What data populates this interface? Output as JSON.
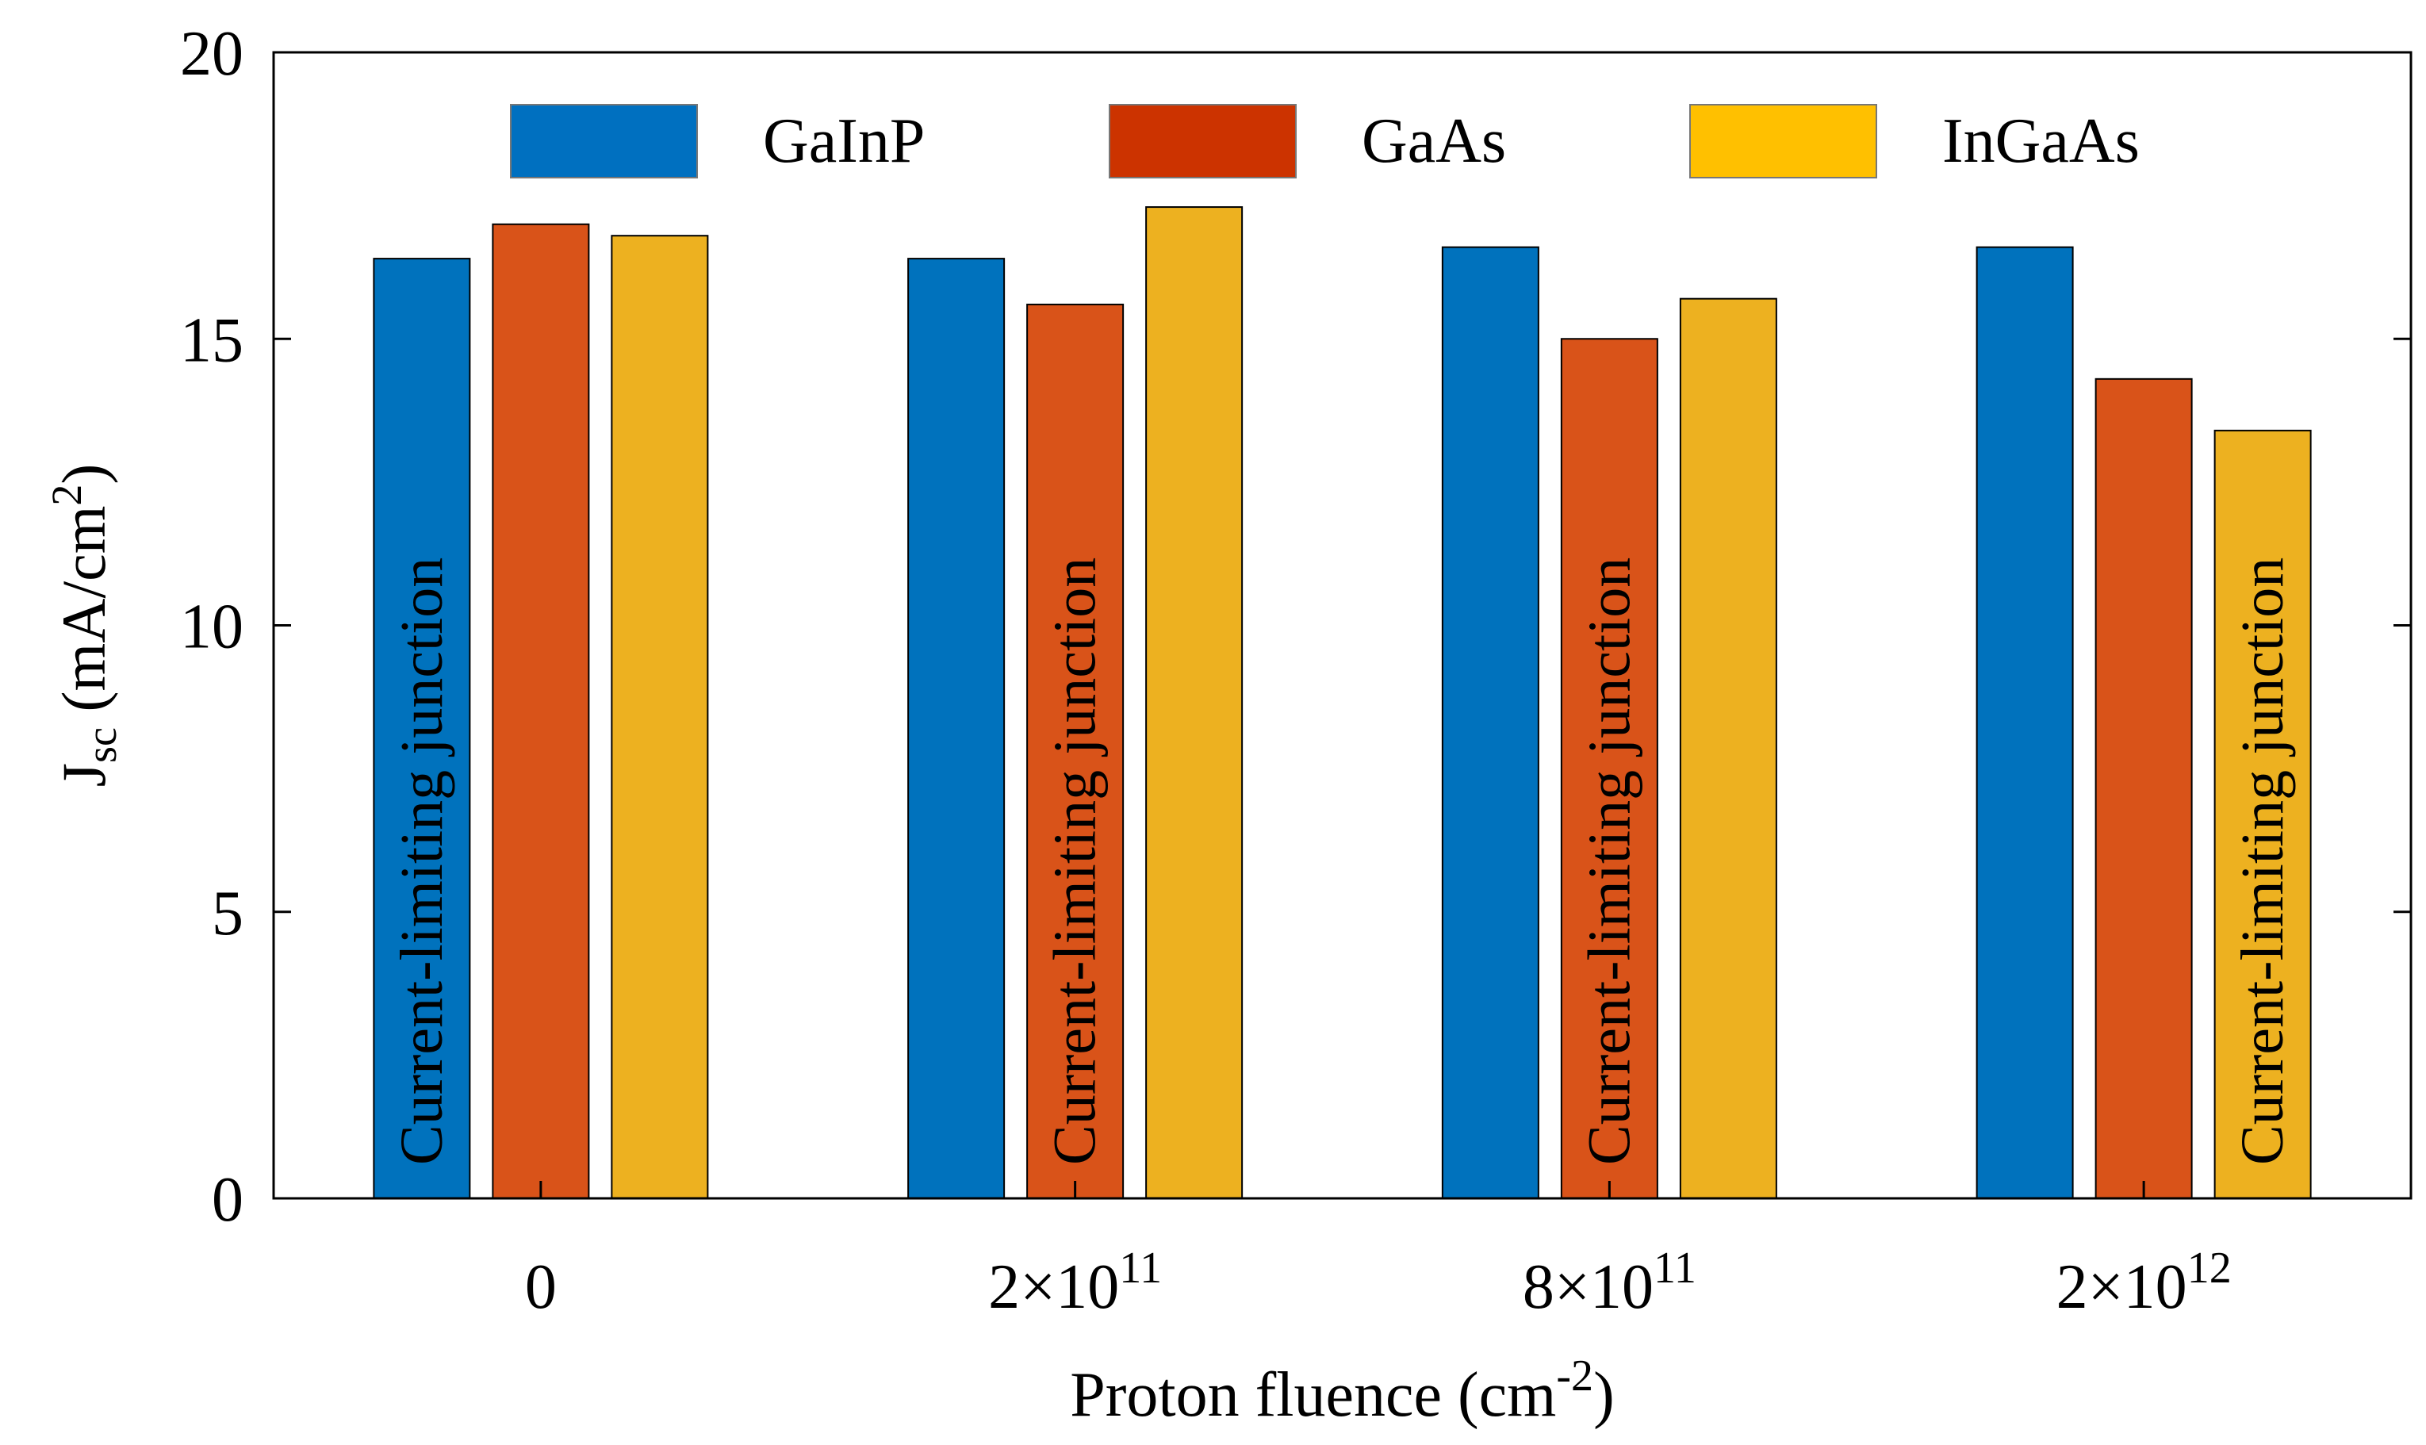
{
  "chart_data": {
    "type": "bar",
    "title": "",
    "xlabel": "Proton fluence (cm",
    "xlabel_sup": "-2",
    "xlabel_close": ")",
    "ylabel_main": "J",
    "ylabel_sub": "sc",
    "ylabel_unit": " (mA/cm",
    "ylabel_sup": "2",
    "ylabel_close": ")",
    "ylim": [
      0,
      20
    ],
    "yticks": [
      "0",
      "5",
      "10",
      "15",
      "20"
    ],
    "grid": false,
    "legend_position": "top",
    "categories": [
      {
        "base": "0",
        "exp": ""
      },
      {
        "base": "2×10",
        "exp": "11"
      },
      {
        "base": "8×10",
        "exp": "11"
      },
      {
        "base": "2×10",
        "exp": "12"
      }
    ],
    "series": [
      {
        "name": "GaInP",
        "color": "#0072BD",
        "legend_color": "#0070C0",
        "values": [
          16.4,
          16.4,
          16.6,
          16.6
        ]
      },
      {
        "name": "GaAs",
        "color": "#D95319",
        "legend_color": "#CC3300",
        "values": [
          17.0,
          15.6,
          15.0,
          14.3
        ]
      },
      {
        "name": "InGaAs",
        "color": "#EDB120",
        "legend_color": "#FFC000",
        "values": [
          16.8,
          17.3,
          15.7,
          13.4
        ]
      }
    ],
    "annotations": [
      {
        "text": "Current-limiting junction",
        "category": 0,
        "series": 0
      },
      {
        "text": "Current-limiting junction",
        "category": 1,
        "series": 1
      },
      {
        "text": "Current-limiting junction",
        "category": 2,
        "series": 1
      },
      {
        "text": "Current-limiting junction",
        "category": 3,
        "series": 2
      }
    ]
  }
}
